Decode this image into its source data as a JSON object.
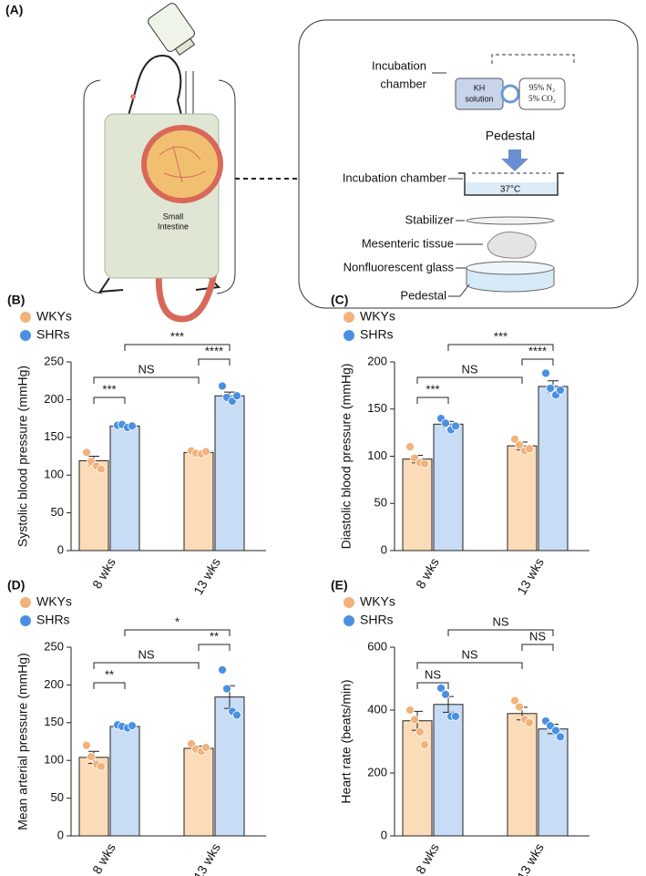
{
  "panel_a": {
    "panel": "(A)",
    "intestine_label": [
      "Small",
      "Intestine"
    ],
    "chamber_label": [
      "Incubation",
      "chamber"
    ],
    "kh_label": [
      "KH",
      "solution"
    ],
    "gas_label": [
      "95% N₂",
      "5% CO₂"
    ],
    "pedestal_top": "Pedestal",
    "incubation_chamber": "Incubation chamber",
    "temperature": "37°C",
    "stabilizer": "Stabilizer",
    "tissue": "Mesenteric tissue",
    "glass": "Nonfluorescent glass",
    "pedestal": "Pedestal"
  },
  "chart_data": [
    {
      "type": "bar",
      "panel": "(B)",
      "y_label": "Systolic blood pressure (mmHg)",
      "categories": [
        "8 wks",
        "13 wks"
      ],
      "ylim": [
        0,
        250
      ],
      "yticks": [
        0,
        50,
        100,
        150,
        200,
        250
      ],
      "series": [
        {
          "name": "WKYs",
          "color": "#fcdcb8",
          "marker_color": "#f2b27a",
          "values": [
            119,
            130
          ],
          "errors": [
            6,
            2
          ],
          "points": [
            [
              130,
              118,
              112,
              108
            ],
            [
              132,
              129,
              128,
              131
            ]
          ]
        },
        {
          "name": "SHRs",
          "color": "#c8dcf6",
          "marker_color": "#4a90e2",
          "values": [
            165,
            205
          ],
          "errors": [
            2,
            5
          ],
          "points": [
            [
              166,
              167,
              163,
              165
            ],
            [
              218,
              203,
              198,
              205
            ]
          ]
        }
      ],
      "annotations": [
        "***",
        "NS",
        "****",
        "***"
      ]
    },
    {
      "type": "bar",
      "panel": "(C)",
      "y_label": "Diastolic blood pressure (mmHg)",
      "categories": [
        "8 wks",
        "13 wks"
      ],
      "ylim": [
        0,
        200
      ],
      "yticks": [
        0,
        50,
        100,
        150,
        200
      ],
      "series": [
        {
          "name": "WKYs",
          "color": "#fcdcb8",
          "marker_color": "#f2b27a",
          "values": [
            97,
            111
          ],
          "errors": [
            4,
            4
          ],
          "points": [
            [
              110,
              98,
              93,
              92
            ],
            [
              118,
              112,
              106,
              108
            ]
          ]
        },
        {
          "name": "SHRs",
          "color": "#c8dcf6",
          "marker_color": "#4a90e2",
          "values": [
            134,
            174
          ],
          "errors": [
            3,
            6
          ],
          "points": [
            [
              140,
              135,
              128,
              132
            ],
            [
              188,
              172,
              165,
              170
            ]
          ]
        }
      ],
      "annotations": [
        "***",
        "NS",
        "****",
        "***"
      ]
    },
    {
      "type": "bar",
      "panel": "(D)",
      "y_label": "Mean arterial pressure (mmHg)",
      "categories": [
        "8 wks",
        "13 wks"
      ],
      "ylim": [
        0,
        250
      ],
      "yticks": [
        0,
        50,
        100,
        150,
        200,
        250
      ],
      "series": [
        {
          "name": "WKYs",
          "color": "#fcdcb8",
          "marker_color": "#f2b27a",
          "values": [
            104,
            116
          ],
          "errors": [
            8,
            3
          ],
          "points": [
            [
              120,
              105,
              95,
              92
            ],
            [
              122,
              115,
              112,
              117
            ]
          ]
        },
        {
          "name": "SHRs",
          "color": "#c8dcf6",
          "marker_color": "#4a90e2",
          "values": [
            145,
            184
          ],
          "errors": [
            2,
            15
          ],
          "points": [
            [
              147,
              145,
              143,
              146
            ],
            [
              220,
              195,
              165,
              160
            ]
          ]
        }
      ],
      "annotations": [
        "**",
        "NS",
        "**",
        "*"
      ]
    },
    {
      "type": "bar",
      "panel": "(E)",
      "y_label": "Heart rate (beats/min)",
      "categories": [
        "8 wks",
        "13 wks"
      ],
      "ylim": [
        0,
        600
      ],
      "yticks": [
        0,
        200,
        400,
        600
      ],
      "series": [
        {
          "name": "WKYs",
          "color": "#fcdcb8",
          "marker_color": "#f2b27a",
          "values": [
            366,
            389
          ],
          "errors": [
            30,
            20
          ],
          "points": [
            [
              400,
              370,
              330,
              290
            ],
            [
              430,
              410,
              370,
              360
            ]
          ]
        },
        {
          "name": "SHRs",
          "color": "#c8dcf6",
          "marker_color": "#4a90e2",
          "values": [
            418,
            340
          ],
          "errors": [
            25,
            15
          ],
          "points": [
            [
              470,
              450,
              380,
              380
            ],
            [
              365,
              350,
              335,
              315
            ]
          ]
        }
      ],
      "annotations": [
        "NS",
        "NS",
        "NS",
        "NS"
      ]
    }
  ]
}
